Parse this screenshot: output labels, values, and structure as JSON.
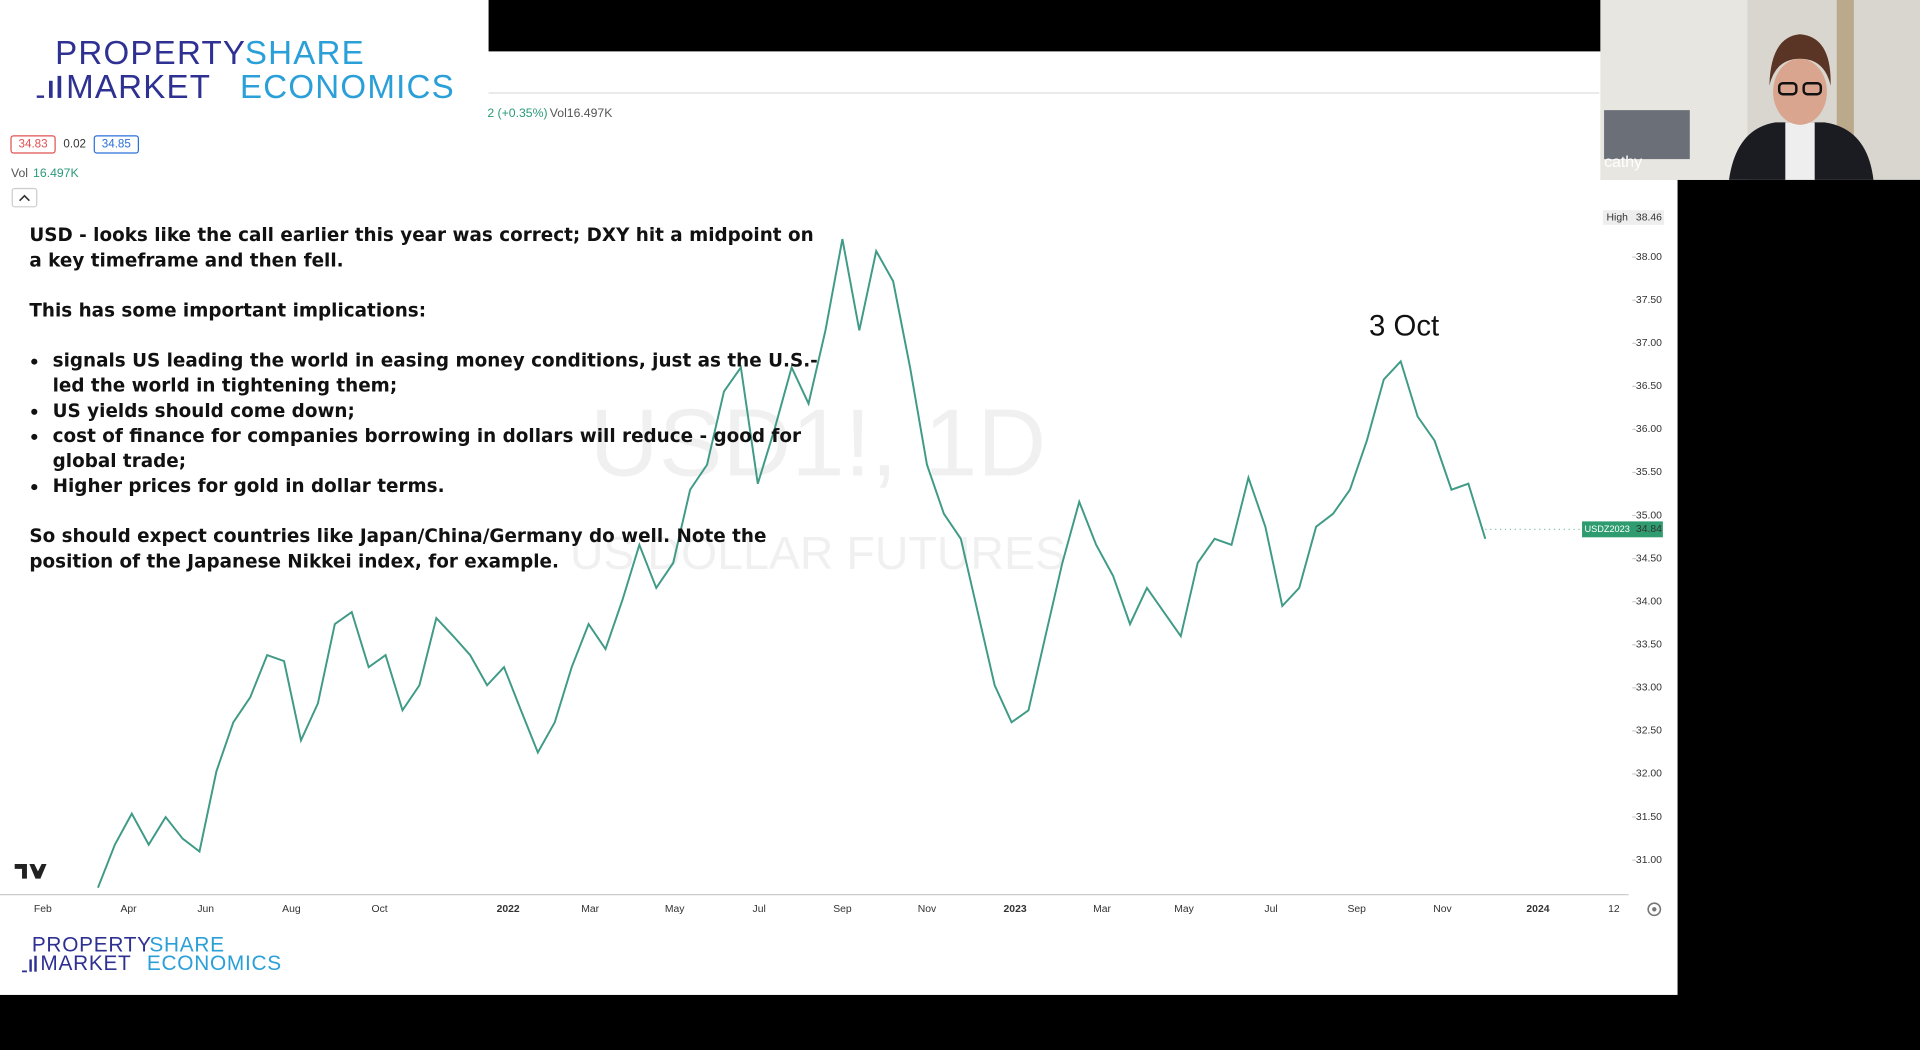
{
  "logo": {
    "word1": "PROPERTY",
    "word2": "SHARE",
    "word3": "MARKET",
    "word4": "ECONOMICS"
  },
  "header": {
    "legend_values": [
      34.83,
      0.02,
      34.85
    ],
    "volume_label": "Vol",
    "volume_value": "16.497K",
    "change": "2 (+0.35%)",
    "top_volume": "Vol16.497K"
  },
  "watermark": {
    "symbol": "USD1!, 1D",
    "name": "US DOLLAR FUTURES"
  },
  "notes": {
    "intro": [
      "USD - looks like the call earlier this year was correct; DXY hit a midpoint on",
      "a key timeframe and then fell."
    ],
    "heading": "This has some important implications:",
    "bullets": [
      [
        "signals US leading the world in easing money conditions, just as the U.S.-",
        "led the world in tightening them;"
      ],
      [
        "US yields should come down;"
      ],
      [
        "cost of finance for companies borrowing in dollars will reduce - good for",
        "global trade;"
      ],
      [
        "Higher prices for gold in dollar terms."
      ]
    ],
    "closing": [
      "So should expect countries like Japan/China/Germany do well. Note the",
      "position of the Japanese Nikkei index, for example."
    ]
  },
  "chart_data": {
    "type": "line",
    "color": "#3f9a86",
    "x_axis_labels": [
      "Feb",
      "Apr",
      "Jun",
      "Aug",
      "Oct",
      "2022",
      "Mar",
      "May",
      "Jul",
      "Sep",
      "Nov",
      "2023",
      "Mar",
      "May",
      "Jul",
      "Sep",
      "Nov",
      "2024",
      "12"
    ],
    "values": [
      30.68,
      31.18,
      31.54,
      31.18,
      31.5,
      31.25,
      31.1,
      32.03,
      32.6,
      32.89,
      33.38,
      33.31,
      32.39,
      32.82,
      33.74,
      33.88,
      33.24,
      33.38,
      32.74,
      33.03,
      33.81,
      33.6,
      33.38,
      33.03,
      33.24,
      32.74,
      32.25,
      32.6,
      33.24,
      33.74,
      33.45,
      34.02,
      34.66,
      34.16,
      34.45,
      35.3,
      35.59,
      36.44,
      36.72,
      35.37,
      36.01,
      36.72,
      36.3,
      37.15,
      38.21,
      37.15,
      38.07,
      37.72,
      36.72,
      35.59,
      35.02,
      34.73,
      33.88,
      33.03,
      32.6,
      32.74,
      33.6,
      34.45,
      35.16,
      34.66,
      34.3,
      33.74,
      34.16,
      33.88,
      33.6,
      34.45,
      34.73,
      34.66,
      35.44,
      34.87,
      33.95,
      34.16,
      34.87,
      35.02,
      35.3,
      35.87,
      36.58,
      36.79,
      36.15,
      35.87,
      35.3,
      35.37,
      34.73
    ],
    "ylim": [
      30.6,
      38.57
    ],
    "yticks": [
      {
        "value": 31,
        "label": "31.00"
      },
      {
        "value": 31.5,
        "label": "31.50"
      },
      {
        "value": 32,
        "label": "32.00"
      },
      {
        "value": 32.5,
        "label": "32.50"
      },
      {
        "value": 33,
        "label": "33.00"
      },
      {
        "value": 33.5,
        "label": "33.50"
      },
      {
        "value": 34,
        "label": "34.00"
      },
      {
        "value": 34.5,
        "label": "34.50"
      },
      {
        "value": 35,
        "label": "35.00"
      },
      {
        "value": 35.5,
        "label": "35.50"
      },
      {
        "value": 36,
        "label": "36.00"
      },
      {
        "value": 36.5,
        "label": "36.50"
      },
      {
        "value": 37,
        "label": "37.00"
      },
      {
        "value": 37.5,
        "label": "37.50"
      },
      {
        "value": 38,
        "label": "38.00"
      }
    ],
    "annotation": "3 Oct",
    "high_label": "High",
    "high_value": 38.46,
    "last_label": "USDZ2023",
    "last_value": 34.84
  },
  "webcam": {
    "name": "cathy"
  }
}
